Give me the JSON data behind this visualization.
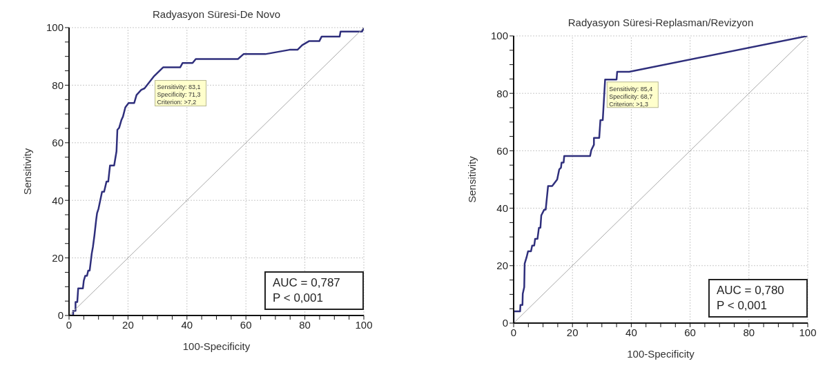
{
  "chart_data": [
    {
      "type": "line",
      "title": "Radyasyon Süresi-De Novo",
      "xlabel": "100-Specificity",
      "ylabel": "Sensitivity",
      "xlim": [
        0,
        100
      ],
      "ylim": [
        0,
        100
      ],
      "xticks": [
        0,
        {
          "value": 5,
          "label": null
        },
        {
          "value": 10,
          "label": null
        },
        {
          "value": 15,
          "label": null
        },
        20,
        {
          "value": 25,
          "label": null
        },
        {
          "value": 30,
          "label": null
        },
        {
          "value": 35,
          "label": null
        },
        40,
        {
          "value": 45,
          "label": null
        },
        {
          "value": 50,
          "label": null
        },
        {
          "value": 55,
          "label": null
        },
        60,
        {
          "value": 65,
          "label": null
        },
        {
          "value": 70,
          "label": null
        },
        {
          "value": 75,
          "label": null
        },
        80,
        {
          "value": 85,
          "label": null
        },
        {
          "value": 90,
          "label": null
        },
        {
          "value": 95,
          "label": null
        },
        100
      ],
      "yticks": [
        0,
        {
          "value": 5,
          "label": null
        },
        {
          "value": 10,
          "label": null
        },
        {
          "value": 15,
          "label": null
        },
        20,
        {
          "value": 25,
          "label": null
        },
        {
          "value": 30,
          "label": null
        },
        {
          "value": 35,
          "label": null
        },
        40,
        {
          "value": 45,
          "label": null
        },
        {
          "value": 50,
          "label": null
        },
        {
          "value": 55,
          "label": null
        },
        60,
        {
          "value": 65,
          "label": null
        },
        {
          "value": 70,
          "label": null
        },
        {
          "value": 75,
          "label": null
        },
        80,
        {
          "value": 85,
          "label": null
        },
        {
          "value": 90,
          "label": null
        },
        {
          "value": 95,
          "label": null
        },
        100
      ],
      "grid": true,
      "marker": "none",
      "line_style": "solid",
      "series": [
        {
          "color": "#2f2f7c",
          "x": [
            0,
            1.4,
            1.4,
            2.2,
            2.2,
            2.8,
            3,
            3.1,
            4.7,
            5,
            5.5,
            6.1,
            6.5,
            7,
            7.7,
            8.1,
            8.6,
            9.2,
            9.5,
            10,
            11.2,
            11.9,
            12.7,
            13.3,
            13.9,
            15.3,
            16.1,
            16.4,
            17,
            17.8,
            18.3,
            19.1,
            20.2,
            22.1,
            22.9,
            24.5,
            25.6,
            28.9,
            31.9,
            37.7,
            38.5,
            41.9,
            43,
            56.1,
            57.3,
            59.2,
            66.6,
            74.8,
            77.5,
            79.1,
            81.4,
            84.9,
            85.7,
            91.8,
            92.1,
            99.4,
            100
          ],
          "values": [
            0,
            0,
            1.6,
            1.6,
            4.7,
            4.7,
            7.8,
            9.4,
            9.4,
            12.1,
            13.8,
            13.8,
            15.6,
            15.6,
            21.5,
            23.8,
            27.7,
            33.2,
            35.5,
            37.1,
            43,
            43,
            46.5,
            46.5,
            52.1,
            52.1,
            57,
            64.5,
            65.2,
            68,
            69.1,
            72.3,
            73.8,
            73.8,
            76.6,
            78.4,
            78.9,
            83.2,
            86.2,
            86.2,
            87.7,
            87.7,
            89.1,
            89.1,
            89.1,
            90.8,
            90.8,
            92.3,
            92.3,
            93.9,
            95.3,
            95.3,
            96.9,
            96.9,
            98.6,
            98.6,
            100
          ]
        },
        {
          "color": "#a8a8a8",
          "x": [
            0,
            100
          ],
          "values": [
            0,
            100
          ]
        }
      ],
      "annotations": [
        {
          "text": "Sensitivity: 83,1\nSpecificity: 71,3\nCriterion: >7,2",
          "x": 28.7,
          "y": 83.1
        },
        "AUC = 0,787\nP < 0,001"
      ]
    },
    {
      "type": "line",
      "title": "Radyasyon Süresi-Replasman/Revizyon",
      "xlabel": "100-Specificity",
      "ylabel": "Sensitivity",
      "xlim": [
        0,
        100
      ],
      "ylim": [
        0,
        100
      ],
      "xticks": [
        0,
        {
          "value": 5,
          "label": null
        },
        {
          "value": 10,
          "label": null
        },
        {
          "value": 15,
          "label": null
        },
        20,
        {
          "value": 25,
          "label": null
        },
        {
          "value": 30,
          "label": null
        },
        {
          "value": 35,
          "label": null
        },
        40,
        {
          "value": 45,
          "label": null
        },
        {
          "value": 50,
          "label": null
        },
        {
          "value": 55,
          "label": null
        },
        60,
        {
          "value": 65,
          "label": null
        },
        {
          "value": 70,
          "label": null
        },
        {
          "value": 75,
          "label": null
        },
        80,
        {
          "value": 85,
          "label": null
        },
        {
          "value": 90,
          "label": null
        },
        {
          "value": 95,
          "label": null
        },
        100
      ],
      "yticks": [
        0,
        {
          "value": 5,
          "label": null
        },
        {
          "value": 10,
          "label": null
        },
        {
          "value": 15,
          "label": null
        },
        20,
        {
          "value": 25,
          "label": null
        },
        {
          "value": 30,
          "label": null
        },
        {
          "value": 35,
          "label": null
        },
        40,
        {
          "value": 45,
          "label": null
        },
        {
          "value": 50,
          "label": null
        },
        {
          "value": 55,
          "label": null
        },
        60,
        {
          "value": 65,
          "label": null
        },
        {
          "value": 70,
          "label": null
        },
        {
          "value": 75,
          "label": null
        },
        80,
        {
          "value": 85,
          "label": null
        },
        {
          "value": 90,
          "label": null
        },
        {
          "value": 95,
          "label": null
        },
        100
      ],
      "grid": true,
      "marker": "none",
      "line_style": "solid",
      "series": [
        {
          "color": "#2f2f7c",
          "x": [
            0,
            0,
            2.2,
            2.3,
            3,
            3.1,
            3.6,
            3.75,
            4.4,
            4.9,
            5.9,
            6.3,
            7,
            7.3,
            8.1,
            8.6,
            9.1,
            9.4,
            10.4,
            10.9,
            11.7,
            13.1,
            14.8,
            15.5,
            16.1,
            16.3,
            17,
            17.2,
            26,
            26.4,
            27.3,
            27.3,
            29.1,
            29.5,
            30.3,
            31.1,
            35,
            35.2,
            39.3,
            100
          ],
          "values": [
            0,
            4.1,
            4.1,
            6.3,
            6.3,
            10.2,
            12.5,
            20.7,
            22.9,
            25,
            25,
            27,
            27,
            29.3,
            29.3,
            33.2,
            33.2,
            37.5,
            39.5,
            39.5,
            47.7,
            47.7,
            50,
            53.5,
            54.1,
            55.9,
            55.9,
            58.2,
            58.2,
            60.2,
            62.1,
            64.5,
            64.5,
            70.7,
            70.7,
            84.8,
            84.8,
            87.5,
            87.5,
            100
          ]
        },
        {
          "color": "#a8a8a8",
          "x": [
            0,
            100
          ],
          "values": [
            0,
            100
          ]
        }
      ],
      "annotations": [
        {
          "text": "Sensitivity: 85,4\nSpecificity: 68,7\nCriterion: >1,3",
          "x": 31.3,
          "y": 85.4
        },
        "AUC = 0,780\nP < 0,001"
      ]
    }
  ]
}
